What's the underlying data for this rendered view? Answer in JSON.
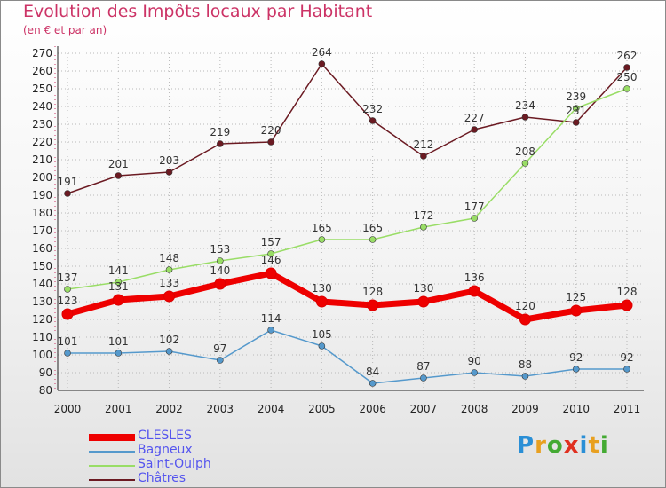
{
  "title": "Evolution des Impôts locaux par Habitant",
  "subtitle": "(en € et par an)",
  "logo": {
    "letters": [
      "P",
      "r",
      "o",
      "x",
      "i",
      "t",
      "i"
    ],
    "colors": [
      "#2a8fd6",
      "#e8a020",
      "#44aa33",
      "#e03020",
      "#2a8fd6",
      "#e8a020",
      "#44aa33"
    ]
  },
  "chart_data": {
    "type": "line",
    "title": "Evolution des Impôts locaux par Habitant",
    "subtitle": "(en € et par an)",
    "xlabel": "",
    "ylabel": "",
    "ylim": [
      80,
      270
    ],
    "y_ticks": [
      80,
      90,
      100,
      110,
      120,
      130,
      140,
      150,
      160,
      170,
      180,
      190,
      200,
      210,
      220,
      230,
      240,
      250,
      260,
      270
    ],
    "x": [
      "2000",
      "2001",
      "2002",
      "2003",
      "2004",
      "2005",
      "2006",
      "2007",
      "2008",
      "2009",
      "2010",
      "2011"
    ],
    "grid": true,
    "legend_position": "bottom-left",
    "series": [
      {
        "name": "Châtres",
        "color": "#6b1a22",
        "values": [
          191,
          201,
          203,
          219,
          220,
          264,
          232,
          212,
          227,
          234,
          231,
          262
        ],
        "labels": [
          "191",
          "201",
          "203",
          "219",
          "220",
          "264",
          "232",
          "212",
          "227",
          "234",
          "231",
          "262"
        ]
      },
      {
        "name": "Saint-Oulph",
        "color": "#99dd66",
        "values": [
          137,
          141,
          148,
          153,
          157,
          165,
          165,
          172,
          177,
          208,
          239,
          250
        ],
        "labels": [
          "137",
          "141",
          "148",
          "153",
          "157",
          "165",
          "165",
          "172",
          "177",
          "208",
          "239",
          "250"
        ]
      },
      {
        "name": "Bagneux",
        "color": "#5599cc",
        "values": [
          101,
          101,
          102,
          97,
          114,
          105,
          84,
          87,
          90,
          88,
          92,
          92
        ],
        "labels": [
          "101",
          "101",
          "102",
          "97",
          "114",
          "105",
          "84",
          "87",
          "90",
          "88",
          "92",
          "92"
        ]
      },
      {
        "name": "CLESLES",
        "color": "#ee0000",
        "values": [
          123,
          131,
          133,
          140,
          146,
          130,
          128,
          130,
          136,
          120,
          125,
          128
        ],
        "labels": [
          "123",
          "131",
          "133",
          "140",
          "146",
          "130",
          "128",
          "130",
          "136",
          "120",
          "125",
          "128"
        ]
      }
    ],
    "legend": [
      "CLESLES",
      "Bagneux",
      "Saint-Oulph",
      "Châtres"
    ]
  }
}
